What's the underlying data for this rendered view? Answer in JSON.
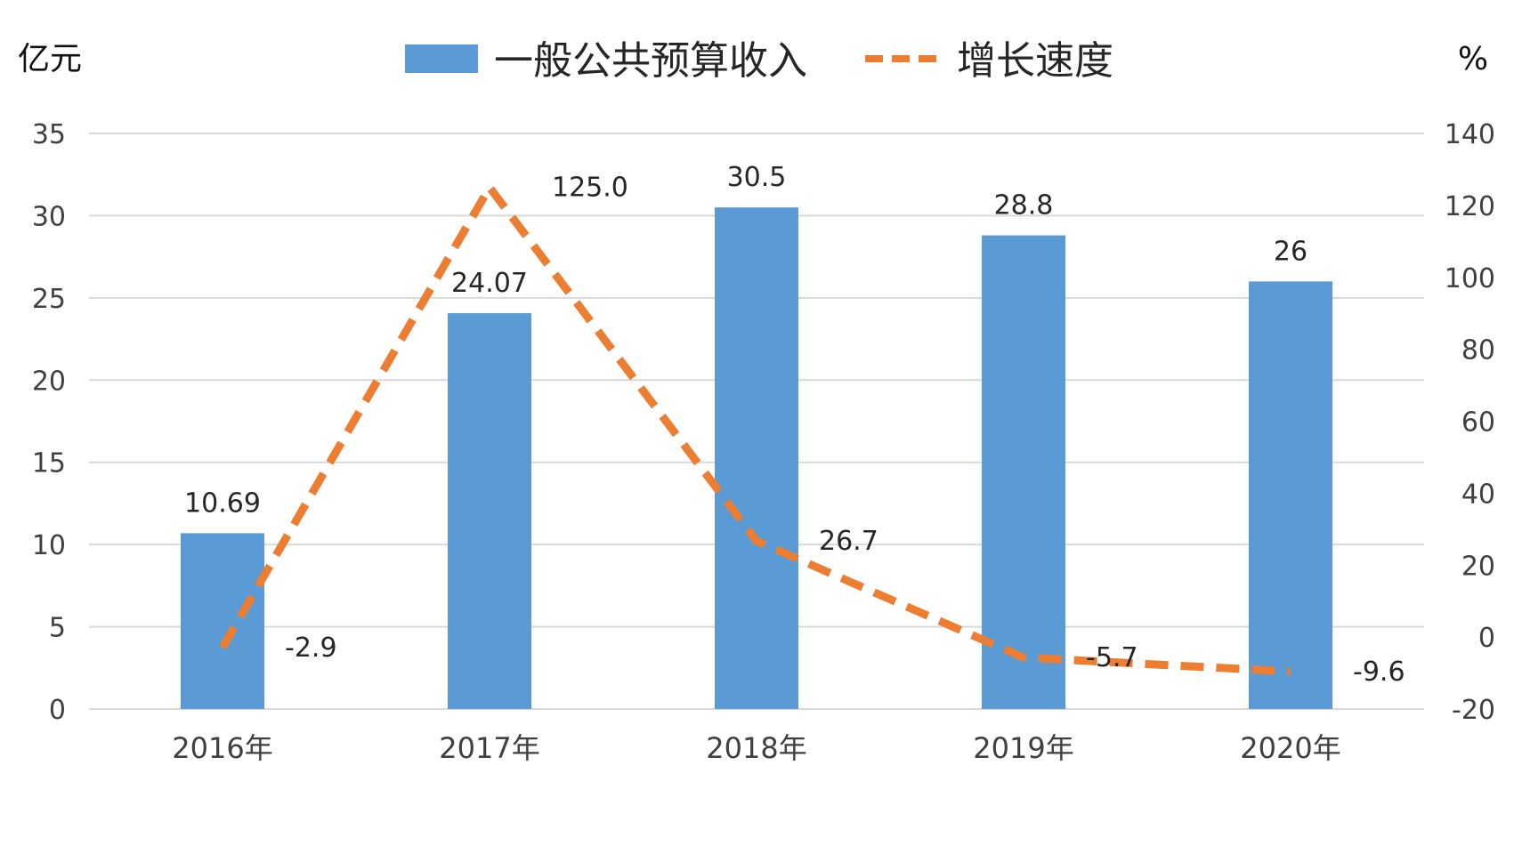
{
  "chart_data": {
    "type": "bar",
    "categories": [
      "2016年",
      "2017年",
      "2018年",
      "2019年",
      "2020年"
    ],
    "series": [
      {
        "name": "一般公共预算收入",
        "type": "bar",
        "axis": "left",
        "color": "#5B9BD5",
        "values": [
          10.69,
          24.07,
          30.5,
          28.8,
          26
        ],
        "labels": [
          "10.69",
          "24.07",
          "30.5",
          "28.8",
          "26"
        ]
      },
      {
        "name": "增长速度",
        "type": "line",
        "style": "dashed",
        "axis": "right",
        "color": "#ED7D31",
        "values": [
          -2.9,
          125.0,
          26.7,
          -5.7,
          -9.6
        ],
        "labels": [
          "-2.9",
          "125.0",
          "26.7",
          "-5.7",
          "-9.6"
        ]
      }
    ],
    "left_axis": {
      "unit": "亿元",
      "ylim": [
        0,
        35
      ],
      "ticks": [
        "0",
        "5",
        "10",
        "15",
        "20",
        "25",
        "30",
        "35"
      ]
    },
    "right_axis": {
      "unit": "%",
      "ylim": [
        -20,
        140
      ],
      "ticks": [
        "-20",
        "0",
        "20",
        "40",
        "60",
        "80",
        "100",
        "120",
        "140"
      ]
    },
    "grid": true,
    "legend": "top-center"
  }
}
